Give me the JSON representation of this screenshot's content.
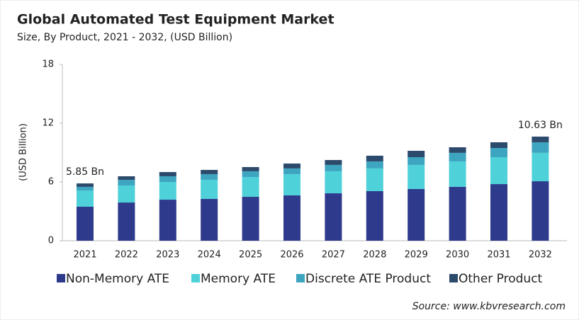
{
  "chart_data": {
    "type": "stacked_bar",
    "title": "Global Automated Test Equipment Market",
    "subtitle": "Size, By Product, 2021 - 2032, (USD Billion)",
    "y_label": "(USD Billion)",
    "source": "Source: www.kbvresearch.com",
    "categories": [
      "2021",
      "2022",
      "2023",
      "2024",
      "2025",
      "2026",
      "2027",
      "2028",
      "2029",
      "2030",
      "2031",
      "2032"
    ],
    "series": [
      {
        "name": "Non-Memory ATE",
        "color": "#2e3a8c",
        "values": [
          3.47,
          3.9,
          4.19,
          4.27,
          4.48,
          4.63,
          4.84,
          5.06,
          5.28,
          5.5,
          5.78,
          6.07
        ]
      },
      {
        "name": "Memory ATE",
        "color": "#4fd1d9",
        "values": [
          1.66,
          1.74,
          1.81,
          1.95,
          2.02,
          2.17,
          2.25,
          2.32,
          2.46,
          2.6,
          2.75,
          2.9
        ]
      },
      {
        "name": "Discrete ATE Product",
        "color": "#3ea5c1",
        "values": [
          0.37,
          0.58,
          0.58,
          0.58,
          0.59,
          0.58,
          0.65,
          0.72,
          0.79,
          0.87,
          0.94,
          1.08
        ]
      },
      {
        "name": "Other Product",
        "color": "#2c4a6b",
        "values": [
          0.35,
          0.36,
          0.43,
          0.43,
          0.43,
          0.5,
          0.5,
          0.58,
          0.65,
          0.57,
          0.58,
          0.58
        ]
      }
    ],
    "annotations": [
      {
        "category": 0,
        "value": 5.85,
        "label": "5.85 Bn"
      },
      {
        "category": 11,
        "value": 10.63,
        "label": "10.63 Bn"
      }
    ],
    "ylim": [
      0,
      18
    ],
    "yticks": [
      0,
      6,
      12,
      18
    ]
  }
}
